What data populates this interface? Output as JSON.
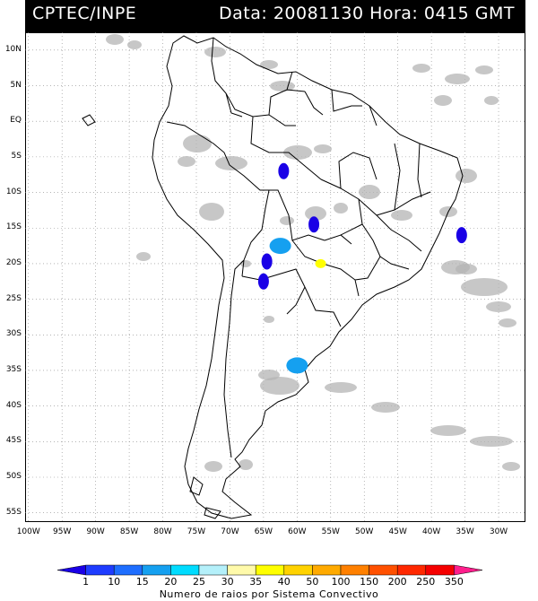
{
  "header": {
    "source": "CPTEC/INPE",
    "datetime": "Data: 20081130 Hora: 0415 GMT"
  },
  "map": {
    "lat_labels": [
      "10N",
      "5N",
      "EQ",
      "5S",
      "10S",
      "15S",
      "20S",
      "25S",
      "30S",
      "35S",
      "40S",
      "45S",
      "50S",
      "55S"
    ],
    "lon_labels": [
      "100W",
      "95W",
      "90W",
      "85W",
      "80W",
      "75W",
      "70W",
      "65W",
      "60W",
      "55W",
      "50W",
      "45W",
      "40W",
      "35W",
      "30W"
    ],
    "lat_range": [
      10,
      -55
    ],
    "lon_range": [
      -100,
      -30
    ],
    "grid": "dotted"
  },
  "colorbar": {
    "labels": [
      "1",
      "10",
      "15",
      "20",
      "25",
      "30",
      "35",
      "40",
      "50",
      "100",
      "150",
      "200",
      "250",
      "350"
    ],
    "colors": [
      "#1a00e6",
      "#1e3cff",
      "#1e6eff",
      "#15a0f0",
      "#00dcff",
      "#b4f0fa",
      "#fffaaa",
      "#ffff00",
      "#ffd200",
      "#ffaa00",
      "#ff8000",
      "#ff5000",
      "#ff2800",
      "#f50000",
      "#ff1e8c"
    ],
    "title": "Numero de raios por Sistema Convectivo"
  },
  "features": {
    "cloud_color": "#b4b4b4",
    "systems": [
      {
        "lat": -7.0,
        "lon": -62.0,
        "class": "1"
      },
      {
        "lat": -14.5,
        "lon": -57.5,
        "class": "1"
      },
      {
        "lat": -16.0,
        "lon": -35.5,
        "class": "1"
      },
      {
        "lat": -17.5,
        "lon": -62.5,
        "class": "20"
      },
      {
        "lat": -19.7,
        "lon": -64.5,
        "class": "1"
      },
      {
        "lat": -20.0,
        "lon": -56.5,
        "class": "40"
      },
      {
        "lat": -22.5,
        "lon": -65.0,
        "class": "1"
      },
      {
        "lat": -34.3,
        "lon": -60.0,
        "class": "20"
      }
    ]
  }
}
